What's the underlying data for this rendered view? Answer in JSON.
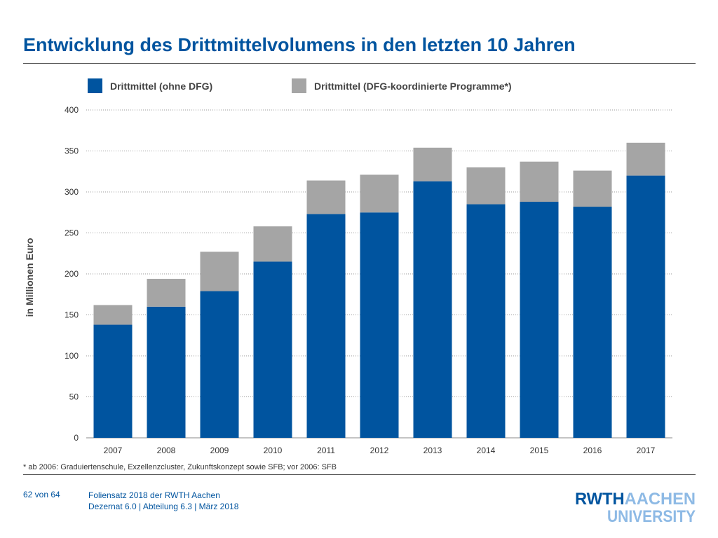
{
  "slide": {
    "title": "Entwicklung des Drittmittelvolumens in den letzten 10 Jahren",
    "footnote": "* ab 2006: Graduiertenschule, Exzellenzcluster, Zukunftskonzept sowie SFB; vor 2006: SFB",
    "page_number": "62 von 64",
    "footer_line1": "Foliensatz 2018 der RWTH Aachen",
    "footer_line2": "Dezernat 6.0 | Abteilung 6.3 | März 2018",
    "logo_text_top": "RWTHAACHEN",
    "logo_text_bottom": "UNIVERSITY"
  },
  "colors": {
    "title": "#00549F",
    "series_blue": "#00549F",
    "series_grey": "#A5A5A5",
    "grid": "#999999"
  },
  "chart_data": {
    "type": "bar",
    "stacked": true,
    "categories": [
      "2007",
      "2008",
      "2009",
      "2010",
      "2011",
      "2012",
      "2013",
      "2014",
      "2015",
      "2016",
      "2017"
    ],
    "series": [
      {
        "name": "Drittmittel (ohne DFG)",
        "color": "#00549F",
        "values": [
          138,
          160,
          179,
          215,
          273,
          275,
          313,
          285,
          288,
          282,
          320
        ]
      },
      {
        "name": "Drittmittel (DFG-koordinierte Programme*)",
        "color": "#A5A5A5",
        "values": [
          24,
          34,
          48,
          43,
          41,
          46,
          41,
          45,
          49,
          44,
          40
        ]
      }
    ],
    "ylabel": "in Millionen Euro",
    "ylim": [
      0,
      400
    ],
    "yticks": [
      "0",
      "50",
      "100",
      "150",
      "200",
      "250",
      "300",
      "350",
      "400"
    ],
    "grid": true,
    "grid_style": "dotted",
    "legend_position": "top"
  }
}
